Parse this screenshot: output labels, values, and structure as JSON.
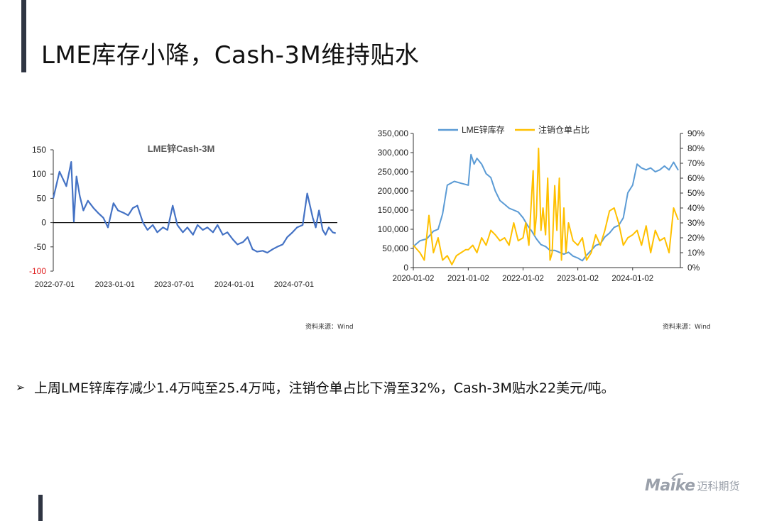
{
  "title": "LME库存小降，Cash-3M维持贴水",
  "summary_bullet": "上周LME锌库存减少1.4万吨至25.4万吨，注销仓单占比下滑至32%，Cash-3M贴水22美元/吨。",
  "bullet_icon": "arrow-bullet-icon",
  "logo": {
    "brand": "Maike",
    "cn": "迈科期货"
  },
  "source1": "资料来源：Wind",
  "source2": "资料来源：Wind",
  "chart_data": [
    {
      "type": "line",
      "title": "LME锌Cash-3M",
      "xlabel": "",
      "ylabel": "",
      "ylim": [
        -100,
        150
      ],
      "y_ticks": [
        "150",
        "100",
        "50",
        "0",
        "-50",
        "-100"
      ],
      "x_ticks": [
        "2022-07-01",
        "2023-01-01",
        "2023-07-01",
        "2024-01-01",
        "2024-07-01"
      ],
      "grid": false,
      "legend": "none",
      "series": [
        {
          "color": "#4472c4",
          "x": [
            "2022-07-01",
            "2022-07-20",
            "2022-08-10",
            "2022-08-25",
            "2022-09-02",
            "2022-09-10",
            "2022-09-20",
            "2022-10-01",
            "2022-10-15",
            "2022-11-01",
            "2022-11-15",
            "2022-12-01",
            "2022-12-15",
            "2023-01-01",
            "2023-01-15",
            "2023-02-01",
            "2023-02-15",
            "2023-03-01",
            "2023-03-15",
            "2023-04-01",
            "2023-04-15",
            "2023-05-01",
            "2023-05-15",
            "2023-06-01",
            "2023-06-15",
            "2023-07-01",
            "2023-07-15",
            "2023-08-01",
            "2023-08-15",
            "2023-09-01",
            "2023-09-15",
            "2023-10-01",
            "2023-10-15",
            "2023-11-01",
            "2023-11-15",
            "2023-12-01",
            "2023-12-15",
            "2024-01-01",
            "2024-01-15",
            "2024-02-01",
            "2024-02-15",
            "2024-03-01",
            "2024-03-15",
            "2024-04-01",
            "2024-04-15",
            "2024-05-01",
            "2024-05-15",
            "2024-06-01",
            "2024-06-15",
            "2024-07-01",
            "2024-07-15",
            "2024-08-01",
            "2024-08-15",
            "2024-09-01",
            "2024-09-10",
            "2024-09-20",
            "2024-10-01",
            "2024-10-10",
            "2024-10-20",
            "2024-11-01",
            "2024-11-10"
          ],
          "values": [
            50,
            105,
            75,
            125,
            2,
            95,
            55,
            25,
            45,
            30,
            20,
            10,
            -10,
            40,
            25,
            20,
            15,
            30,
            35,
            0,
            -15,
            -5,
            -20,
            -10,
            -15,
            35,
            -5,
            -20,
            -10,
            -25,
            -5,
            -15,
            -10,
            -20,
            -5,
            -25,
            -20,
            -35,
            -45,
            -40,
            -30,
            -55,
            -60,
            -58,
            -62,
            -55,
            -50,
            -45,
            -30,
            -20,
            -10,
            -5,
            60,
            10,
            -10,
            25,
            -15,
            -25,
            -10,
            -20,
            -22
          ]
        }
      ]
    },
    {
      "type": "line",
      "title": "",
      "xlabel": "",
      "ylabel": "",
      "ylim": [
        0,
        350000
      ],
      "y2lim": [
        0,
        90
      ],
      "y_ticks": [
        "350,000",
        "300,000",
        "250,000",
        "200,000",
        "150,000",
        "100,000",
        "50,000",
        "0"
      ],
      "y2_ticks": [
        "90%",
        "80%",
        "70%",
        "60%",
        "50%",
        "40%",
        "30%",
        "20%",
        "10%",
        "0%"
      ],
      "x_ticks": [
        "2020-01-02",
        "2021-01-02",
        "2022-01-02",
        "2023-01-02",
        "2024-01-02"
      ],
      "grid": false,
      "legend": "top",
      "series": [
        {
          "name": "LME锌库存",
          "color": "#5b9bd5",
          "axis": "left",
          "x": [
            "2020-01-02",
            "2020-02-15",
            "2020-04-01",
            "2020-05-15",
            "2020-06-15",
            "2020-07-15",
            "2020-08-15",
            "2020-10-01",
            "2020-11-15",
            "2021-01-02",
            "2021-01-20",
            "2021-02-10",
            "2021-03-01",
            "2021-04-01",
            "2021-05-01",
            "2021-06-01",
            "2021-07-01",
            "2021-08-01",
            "2021-09-01",
            "2021-10-01",
            "2021-11-01",
            "2021-12-01",
            "2022-01-02",
            "2022-02-01",
            "2022-03-01",
            "2022-04-01",
            "2022-05-01",
            "2022-06-01",
            "2022-07-01",
            "2022-08-01",
            "2022-09-01",
            "2022-10-01",
            "2022-11-01",
            "2022-12-01",
            "2023-01-02",
            "2023-02-01",
            "2023-03-01",
            "2023-04-01",
            "2023-05-01",
            "2023-06-01",
            "2023-07-01",
            "2023-08-01",
            "2023-09-01",
            "2023-10-01",
            "2023-11-01",
            "2023-12-01",
            "2024-01-02",
            "2024-02-01",
            "2024-03-01",
            "2024-04-01",
            "2024-05-01",
            "2024-06-01",
            "2024-07-01",
            "2024-08-01",
            "2024-09-01",
            "2024-10-01",
            "2024-11-01"
          ],
          "values": [
            55000,
            70000,
            75000,
            95000,
            100000,
            140000,
            215000,
            225000,
            220000,
            215000,
            295000,
            270000,
            285000,
            270000,
            245000,
            235000,
            200000,
            175000,
            165000,
            155000,
            150000,
            145000,
            130000,
            110000,
            95000,
            75000,
            60000,
            55000,
            45000,
            45000,
            40000,
            35000,
            40000,
            30000,
            25000,
            18000,
            32000,
            45000,
            58000,
            62000,
            80000,
            90000,
            105000,
            110000,
            130000,
            195000,
            215000,
            270000,
            260000,
            255000,
            260000,
            250000,
            255000,
            265000,
            255000,
            275000,
            254000
          ]
        },
        {
          "name": "注销仓单占比",
          "color": "#ffc000",
          "axis": "right",
          "x": [
            "2020-01-02",
            "2020-02-15",
            "2020-03-15",
            "2020-04-15",
            "2020-05-15",
            "2020-06-15",
            "2020-07-15",
            "2020-08-15",
            "2020-09-15",
            "2020-10-15",
            "2020-11-15",
            "2020-12-15",
            "2021-01-02",
            "2021-02-01",
            "2021-03-01",
            "2021-04-01",
            "2021-05-01",
            "2021-06-01",
            "2021-07-01",
            "2021-08-01",
            "2021-09-01",
            "2021-10-01",
            "2021-11-01",
            "2021-12-01",
            "2022-01-02",
            "2022-01-20",
            "2022-02-10",
            "2022-03-01",
            "2022-03-10",
            "2022-03-20",
            "2022-04-01",
            "2022-04-15",
            "2022-05-01",
            "2022-05-15",
            "2022-06-01",
            "2022-06-15",
            "2022-07-01",
            "2022-07-15",
            "2022-08-01",
            "2022-08-15",
            "2022-09-01",
            "2022-09-15",
            "2022-10-01",
            "2022-10-15",
            "2022-11-01",
            "2022-12-01",
            "2023-01-02",
            "2023-02-01",
            "2023-03-01",
            "2023-04-01",
            "2023-05-01",
            "2023-06-01",
            "2023-07-01",
            "2023-08-01",
            "2023-09-01",
            "2023-10-01",
            "2023-11-01",
            "2023-12-01",
            "2024-01-02",
            "2024-02-01",
            "2024-03-01",
            "2024-04-01",
            "2024-05-01",
            "2024-06-01",
            "2024-07-01",
            "2024-08-01",
            "2024-09-01",
            "2024-10-01",
            "2024-11-01"
          ],
          "values": [
            15,
            10,
            5,
            35,
            10,
            20,
            5,
            8,
            2,
            8,
            10,
            12,
            12,
            15,
            10,
            20,
            15,
            25,
            22,
            18,
            20,
            15,
            30,
            18,
            20,
            30,
            15,
            50,
            65,
            22,
            35,
            80,
            25,
            40,
            22,
            60,
            5,
            10,
            55,
            25,
            60,
            5,
            40,
            10,
            30,
            18,
            15,
            20,
            5,
            10,
            22,
            15,
            25,
            38,
            40,
            30,
            15,
            20,
            22,
            25,
            15,
            28,
            10,
            25,
            18,
            20,
            10,
            40,
            32
          ]
        }
      ]
    }
  ]
}
